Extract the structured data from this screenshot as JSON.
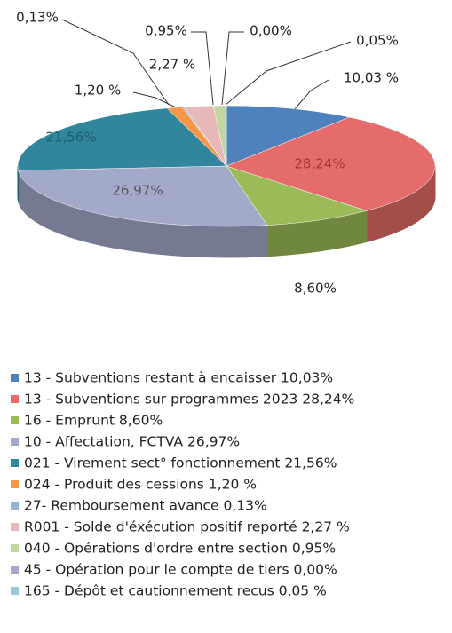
{
  "chart_data": {
    "type": "pie",
    "categories": [
      "13 - Subventions restant à encaisser 10,03%",
      "13 - Subventions sur programmes 2023 28,24%",
      "16 - Emprunt 8,60%",
      "10 - Affectation, FCTVA 26,97%",
      "021 - Virement sect° fonctionnement 21,56%",
      "024 - Produit des cessions 1,20 %",
      "27- Remboursement avance 0,13%",
      "R001 - Solde d'éxécution positif reporté 2,27 %",
      "040 - Opérations d'ordre entre section 0,95%",
      "45 - Opération pour le compte de tiers 0,00%",
      "165 - Dépôt et cautionnement recus 0,05 %"
    ],
    "values": [
      10.03,
      28.24,
      8.6,
      26.97,
      21.56,
      1.2,
      0.13,
      2.27,
      0.95,
      0.0,
      0.05
    ],
    "value_labels": [
      "10,03 %",
      "28,24%",
      "8,60%",
      "26,97%",
      "21,56%",
      "1,20 %",
      "0,13%",
      "2,27 %",
      "0,95%",
      "0,00%",
      "0,05%"
    ],
    "colors": [
      "#4f81bd",
      "#e46c6a",
      "#9bbb59",
      "#a3a9c9",
      "#31859c",
      "#f79646",
      "#95b3d7",
      "#e6b9b8",
      "#c3d69b",
      "#b3a2c7",
      "#93cddd"
    ]
  }
}
